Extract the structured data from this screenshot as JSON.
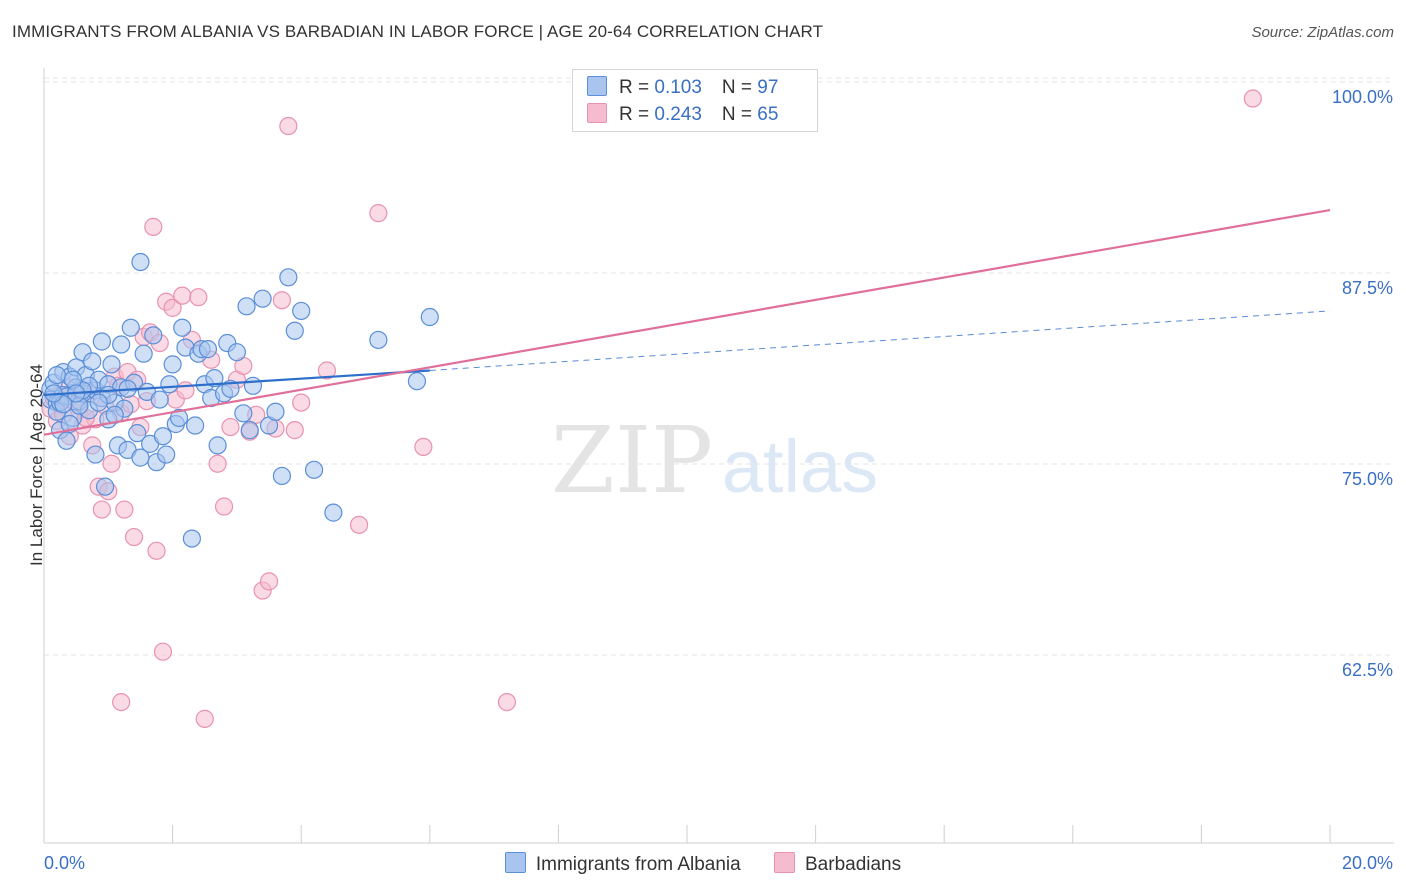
{
  "title": "IMMIGRANTS FROM ALBANIA VS BARBADIAN IN LABOR FORCE | AGE 20-64 CORRELATION CHART",
  "source": "Source: ZipAtlas.com",
  "colors": {
    "blue_fill": "#a8c4ef",
    "blue_stroke": "#5b8fd8",
    "blue_line": "#2e6fcb",
    "pink_fill": "#f5bccf",
    "pink_stroke": "#e892b0",
    "pink_line": "#e0709a",
    "axis_text": "#3a6fc4",
    "grid": "#e3e3e3"
  },
  "legend": {
    "row1": {
      "r_label": "R = ",
      "r_value": "0.103",
      "n_label": "N = ",
      "n_value": "97"
    },
    "row2": {
      "r_label": "R = ",
      "r_value": "0.243",
      "n_label": "N = ",
      "n_value": "65"
    }
  },
  "bottom_legend": {
    "series1": "Immigrants from Albania",
    "series2": "Barbadians"
  },
  "watermark": {
    "zip": "ZIP",
    "atlas": "atlas"
  },
  "chart_data": {
    "type": "scatter",
    "title": "IMMIGRANTS FROM ALBANIA VS BARBADIAN IN LABOR FORCE | AGE 20-64 CORRELATION CHART",
    "xlabel": "",
    "ylabel": "In Labor Force | Age 20-64",
    "xlim": [
      0,
      20
    ],
    "ylim": [
      50,
      102.5
    ],
    "x_tick_labels": [
      "0.0%",
      "20.0%"
    ],
    "y_ticks": [
      62.5,
      75.0,
      87.5,
      100.0
    ],
    "y_tick_labels": [
      "62.5%",
      "75.0%",
      "87.5%",
      "100.0%"
    ],
    "grid": true,
    "legend_position": "top-center",
    "series": [
      {
        "name": "Immigrants from Albania",
        "R": 0.103,
        "N": 97,
        "trend": {
          "x": [
            0.0,
            6.0,
            20.0
          ],
          "y": [
            80.5,
            82.1,
            86.0
          ],
          "solid_until_x": 6.0
        },
        "points": [
          [
            0.1,
            80.9
          ],
          [
            0.1,
            80.2
          ],
          [
            0.15,
            81.3
          ],
          [
            0.2,
            80.0
          ],
          [
            0.2,
            79.4
          ],
          [
            0.25,
            78.2
          ],
          [
            0.3,
            80.5
          ],
          [
            0.3,
            82.0
          ],
          [
            0.35,
            77.5
          ],
          [
            0.4,
            81.7
          ],
          [
            0.45,
            79.0
          ],
          [
            0.5,
            82.3
          ],
          [
            0.5,
            81.0
          ],
          [
            0.55,
            80.1
          ],
          [
            0.6,
            83.3
          ],
          [
            0.6,
            80.6
          ],
          [
            0.65,
            81.8
          ],
          [
            0.7,
            79.5
          ],
          [
            0.75,
            82.7
          ],
          [
            0.8,
            80.8
          ],
          [
            0.8,
            76.6
          ],
          [
            0.85,
            81.5
          ],
          [
            0.9,
            84.0
          ],
          [
            0.9,
            80.3
          ],
          [
            0.95,
            74.5
          ],
          [
            1.0,
            81.2
          ],
          [
            1.0,
            78.9
          ],
          [
            1.05,
            82.5
          ],
          [
            1.1,
            80.0
          ],
          [
            1.15,
            77.2
          ],
          [
            1.2,
            83.8
          ],
          [
            1.2,
            81.0
          ],
          [
            1.25,
            79.6
          ],
          [
            1.3,
            76.9
          ],
          [
            1.35,
            84.9
          ],
          [
            1.4,
            81.3
          ],
          [
            1.45,
            78.0
          ],
          [
            1.5,
            76.4
          ],
          [
            1.5,
            89.2
          ],
          [
            1.55,
            83.2
          ],
          [
            1.6,
            80.7
          ],
          [
            1.65,
            77.3
          ],
          [
            1.7,
            84.4
          ],
          [
            1.75,
            76.1
          ],
          [
            1.8,
            80.2
          ],
          [
            1.85,
            77.8
          ],
          [
            1.9,
            76.6
          ],
          [
            1.95,
            81.2
          ],
          [
            2.0,
            82.5
          ],
          [
            2.05,
            78.6
          ],
          [
            2.1,
            79.0
          ],
          [
            2.15,
            84.9
          ],
          [
            2.2,
            83.6
          ],
          [
            2.3,
            71.1
          ],
          [
            2.35,
            78.5
          ],
          [
            2.4,
            83.2
          ],
          [
            2.45,
            83.5
          ],
          [
            2.5,
            81.2
          ],
          [
            2.55,
            83.5
          ],
          [
            2.6,
            80.3
          ],
          [
            2.65,
            81.6
          ],
          [
            2.7,
            77.2
          ],
          [
            2.8,
            80.6
          ],
          [
            2.85,
            83.9
          ],
          [
            2.9,
            80.9
          ],
          [
            3.0,
            83.3
          ],
          [
            3.1,
            79.3
          ],
          [
            3.15,
            86.3
          ],
          [
            3.2,
            78.2
          ],
          [
            3.25,
            81.1
          ],
          [
            3.4,
            86.8
          ],
          [
            3.5,
            78.5
          ],
          [
            3.6,
            79.4
          ],
          [
            3.7,
            75.2
          ],
          [
            3.8,
            88.2
          ],
          [
            3.9,
            84.7
          ],
          [
            4.0,
            86.0
          ],
          [
            4.2,
            75.6
          ],
          [
            4.5,
            72.8
          ],
          [
            5.2,
            84.1
          ],
          [
            5.8,
            81.4
          ],
          [
            6.0,
            85.6
          ],
          [
            0.2,
            81.8
          ],
          [
            0.35,
            80.4
          ],
          [
            0.55,
            79.8
          ],
          [
            0.7,
            81.1
          ],
          [
            1.0,
            80.5
          ],
          [
            1.3,
            80.9
          ],
          [
            0.4,
            78.6
          ],
          [
            0.6,
            80.8
          ],
          [
            0.25,
            80.0
          ],
          [
            0.45,
            81.5
          ],
          [
            0.85,
            80.0
          ],
          [
            1.1,
            79.2
          ],
          [
            0.3,
            79.9
          ],
          [
            0.5,
            80.6
          ],
          [
            0.15,
            80.6
          ]
        ]
      },
      {
        "name": "Barbadians",
        "R": 0.243,
        "N": 65,
        "trend": {
          "x": [
            0.0,
            20.0
          ],
          "y": [
            77.9,
            92.6
          ]
        },
        "points": [
          [
            0.1,
            79.6
          ],
          [
            0.15,
            80.3
          ],
          [
            0.2,
            78.8
          ],
          [
            0.3,
            79.2
          ],
          [
            0.35,
            81.0
          ],
          [
            0.4,
            77.8
          ],
          [
            0.5,
            80.0
          ],
          [
            0.55,
            79.5
          ],
          [
            0.6,
            78.5
          ],
          [
            0.7,
            80.6
          ],
          [
            0.75,
            77.2
          ],
          [
            0.8,
            78.9
          ],
          [
            0.85,
            74.5
          ],
          [
            0.9,
            73.0
          ],
          [
            0.95,
            79.8
          ],
          [
            1.0,
            74.2
          ],
          [
            1.05,
            76.0
          ],
          [
            1.1,
            81.7
          ],
          [
            1.15,
            81.1
          ],
          [
            1.2,
            79.3
          ],
          [
            1.25,
            73.0
          ],
          [
            1.3,
            82.0
          ],
          [
            1.35,
            79.9
          ],
          [
            1.4,
            71.2
          ],
          [
            1.45,
            81.5
          ],
          [
            1.5,
            78.4
          ],
          [
            1.55,
            84.3
          ],
          [
            1.6,
            80.1
          ],
          [
            1.65,
            84.6
          ],
          [
            1.7,
            91.5
          ],
          [
            1.75,
            70.3
          ],
          [
            1.8,
            83.9
          ],
          [
            1.85,
            63.7
          ],
          [
            1.9,
            86.6
          ],
          [
            2.0,
            86.2
          ],
          [
            2.05,
            80.2
          ],
          [
            2.15,
            87.0
          ],
          [
            2.2,
            80.8
          ],
          [
            2.3,
            84.1
          ],
          [
            2.4,
            86.9
          ],
          [
            2.5,
            59.3
          ],
          [
            2.6,
            82.8
          ],
          [
            2.7,
            76.0
          ],
          [
            2.8,
            73.2
          ],
          [
            2.9,
            78.4
          ],
          [
            3.0,
            81.5
          ],
          [
            3.1,
            82.4
          ],
          [
            3.2,
            78.1
          ],
          [
            3.3,
            79.2
          ],
          [
            3.4,
            67.7
          ],
          [
            3.5,
            68.3
          ],
          [
            3.6,
            78.3
          ],
          [
            3.7,
            86.7
          ],
          [
            3.8,
            98.1
          ],
          [
            3.9,
            78.2
          ],
          [
            4.0,
            80.0
          ],
          [
            4.4,
            82.1
          ],
          [
            4.9,
            72.0
          ],
          [
            5.2,
            92.4
          ],
          [
            5.9,
            77.1
          ],
          [
            7.2,
            60.4
          ],
          [
            18.8,
            99.9
          ],
          [
            1.2,
            60.4
          ],
          [
            0.25,
            80.5
          ],
          [
            0.65,
            79.0
          ]
        ]
      }
    ]
  }
}
